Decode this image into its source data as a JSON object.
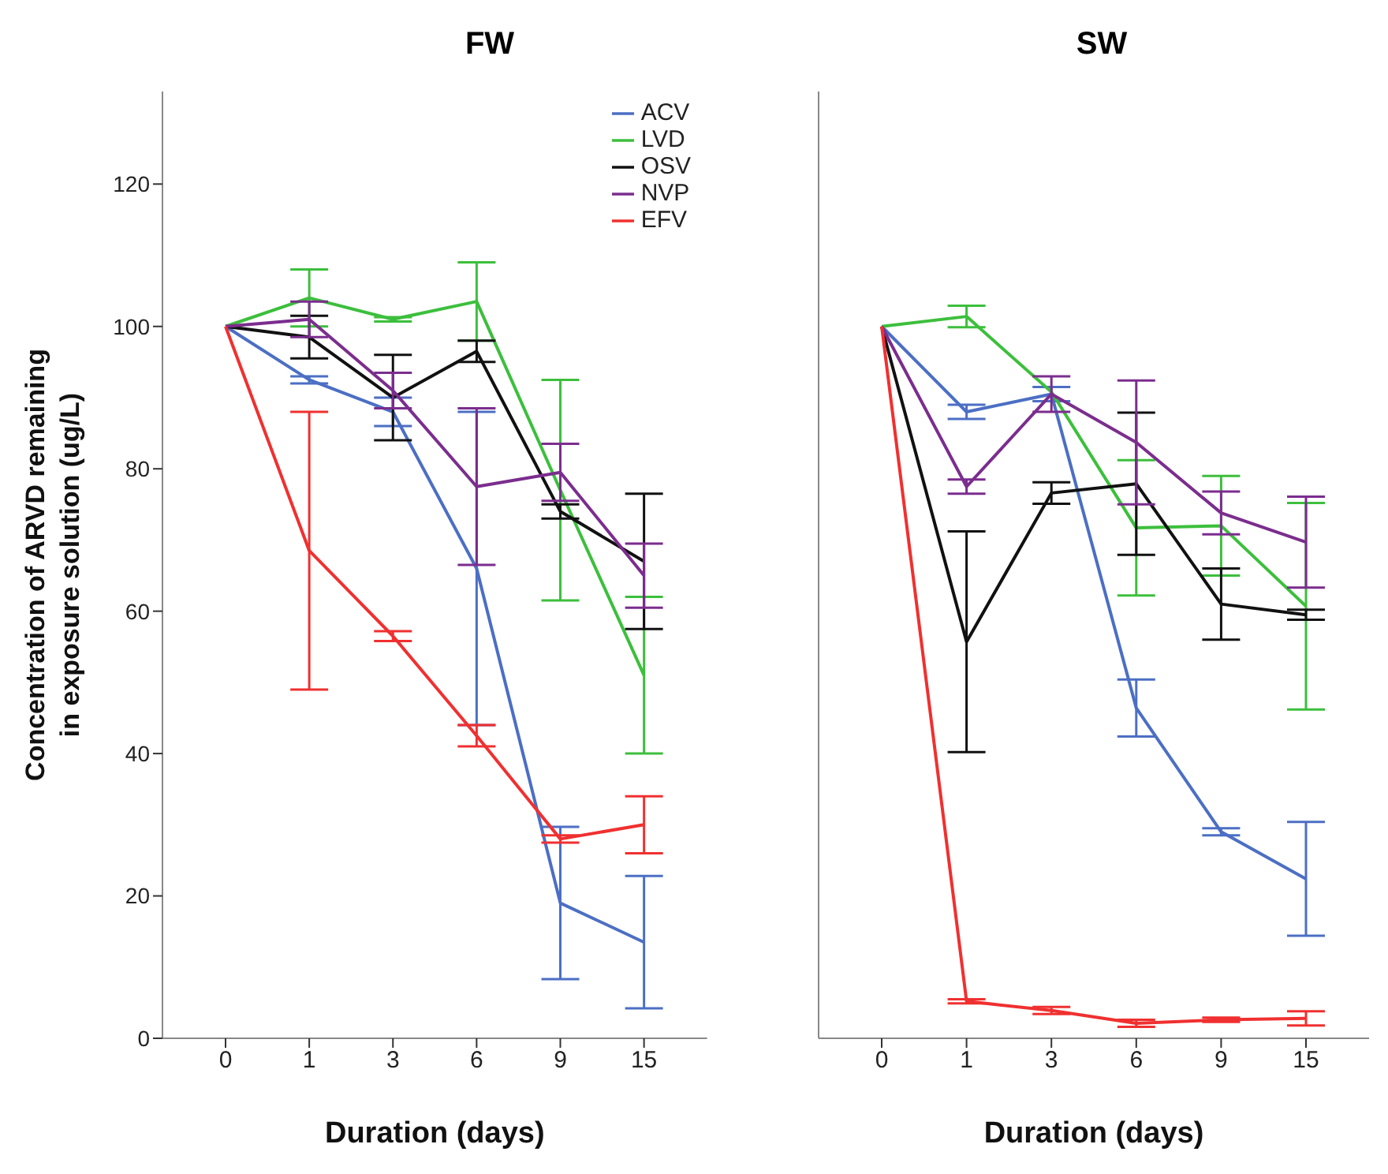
{
  "chart_data": [
    {
      "type": "line",
      "title": "FW",
      "xlabel": "Duration (days)",
      "ylabel": "Concentration of ARVD remaining in exposure solution (ug/L)",
      "categories": [
        "0",
        "1",
        "3",
        "6",
        "9",
        "15"
      ],
      "ylim": [
        0,
        133
      ],
      "yticks": [
        0,
        20,
        40,
        60,
        80,
        100,
        120
      ],
      "grid": false,
      "legend": "top right",
      "marker": "none",
      "series": [
        {
          "name": "ACV",
          "color": "#4c6fc4",
          "values": [
            100,
            92.5,
            88,
            66,
            19,
            13.5
          ],
          "errors": [
            null,
            0.5,
            2,
            22,
            10.7,
            9.3
          ]
        },
        {
          "name": "LVD",
          "color": "#3cbf3c",
          "values": [
            100,
            104,
            101,
            103.5,
            77,
            51
          ],
          "errors": [
            null,
            4,
            0.3,
            5.5,
            15.5,
            11
          ]
        },
        {
          "name": "OSV",
          "color": "#111111",
          "values": [
            100,
            98.5,
            90,
            96.5,
            74,
            67
          ],
          "errors": [
            null,
            3,
            6,
            1.5,
            1,
            9.5
          ]
        },
        {
          "name": "NVP",
          "color": "#7b2d8e",
          "values": [
            100,
            101,
            91,
            77.5,
            79.5,
            65
          ],
          "errors": [
            null,
            2.5,
            2.5,
            11,
            4,
            4.5
          ]
        },
        {
          "name": "EFV",
          "color": "#f03030",
          "values": [
            100,
            68.5,
            56.5,
            42.5,
            28,
            30
          ],
          "errors": [
            null,
            19.5,
            0.7,
            1.5,
            0.5,
            4
          ]
        }
      ]
    },
    {
      "type": "line",
      "title": "SW",
      "xlabel": "Duration (days)",
      "categories": [
        "0",
        "1",
        "3",
        "6",
        "9",
        "15"
      ],
      "ylim": [
        0,
        133
      ],
      "yticks": [
        0,
        20,
        40,
        60,
        80,
        100,
        120
      ],
      "tick_labels": "x",
      "grid": false,
      "marker": "none",
      "series": [
        {
          "color": "#4c6fc4",
          "values": [
            100,
            88,
            90.5,
            46.4,
            29,
            22.4
          ],
          "errors": [
            null,
            1,
            1,
            4,
            0.5,
            8
          ]
        },
        {
          "color": "#3cbf3c",
          "values": [
            100,
            101.4,
            90.8,
            71.7,
            72,
            60.7
          ],
          "errors": [
            null,
            1.5,
            null,
            9.5,
            7,
            14.5
          ]
        },
        {
          "color": "#111111",
          "values": [
            100,
            55.7,
            76.6,
            77.9,
            61,
            59.5
          ],
          "errors": [
            null,
            15.5,
            1.5,
            10,
            5,
            0.7
          ]
        },
        {
          "color": "#7b2d8e",
          "values": [
            100,
            77.5,
            90.5,
            83.7,
            73.8,
            69.7
          ],
          "errors": [
            null,
            1,
            2.5,
            8.7,
            3,
            6.4
          ]
        },
        {
          "color": "#f03030",
          "values": [
            100,
            5.2,
            3.9,
            2.1,
            2.6,
            2.8
          ],
          "errors": [
            null,
            0.3,
            0.5,
            0.5,
            0.3,
            1
          ]
        }
      ]
    }
  ]
}
